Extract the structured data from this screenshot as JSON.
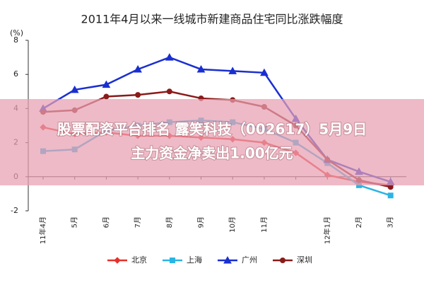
{
  "chart_data": {
    "type": "line",
    "title": "2011年4月以来一线城市新建商品住宅同比涨跌幅度",
    "y_label": "(%)",
    "categories": [
      "11年4月",
      "5月",
      "6月",
      "7月",
      "8月",
      "9月",
      "10月",
      "11月",
      null,
      "12年1月",
      "2月",
      "3月"
    ],
    "series": [
      {
        "name": "北京",
        "color": "#e8302a",
        "marker": "diamond",
        "values": [
          2.9,
          2.5,
          2.6,
          2.4,
          2.4,
          2.3,
          2.2,
          2.0,
          1.4,
          0.1,
          -0.3,
          -0.5
        ]
      },
      {
        "name": "上海",
        "color": "#2ab4e4",
        "marker": "square",
        "values": [
          1.5,
          1.6,
          2.7,
          3.0,
          3.2,
          3.3,
          3.2,
          2.8,
          2.0,
          0.8,
          -0.5,
          -1.1
        ]
      },
      {
        "name": "广州",
        "color": "#1a2fd0",
        "marker": "triangle",
        "values": [
          4.0,
          5.1,
          5.4,
          6.3,
          7.0,
          6.3,
          6.2,
          6.1,
          3.4,
          1.0,
          0.3,
          -0.3
        ]
      },
      {
        "name": "深圳",
        "color": "#8b1a1a",
        "marker": "circle",
        "values": [
          3.8,
          3.9,
          4.7,
          4.8,
          5.0,
          4.6,
          4.5,
          4.1,
          3.0,
          1.0,
          -0.2,
          -0.6
        ]
      }
    ],
    "ylim": [
      -2,
      8
    ],
    "yticks": [
      -2,
      0,
      2,
      4,
      6,
      8
    ],
    "grid": false
  },
  "overlay": {
    "lines": [
      "股票配资平台排名 露笑科技（002617）5月9日",
      "主力资金净卖出1.00亿元"
    ]
  }
}
